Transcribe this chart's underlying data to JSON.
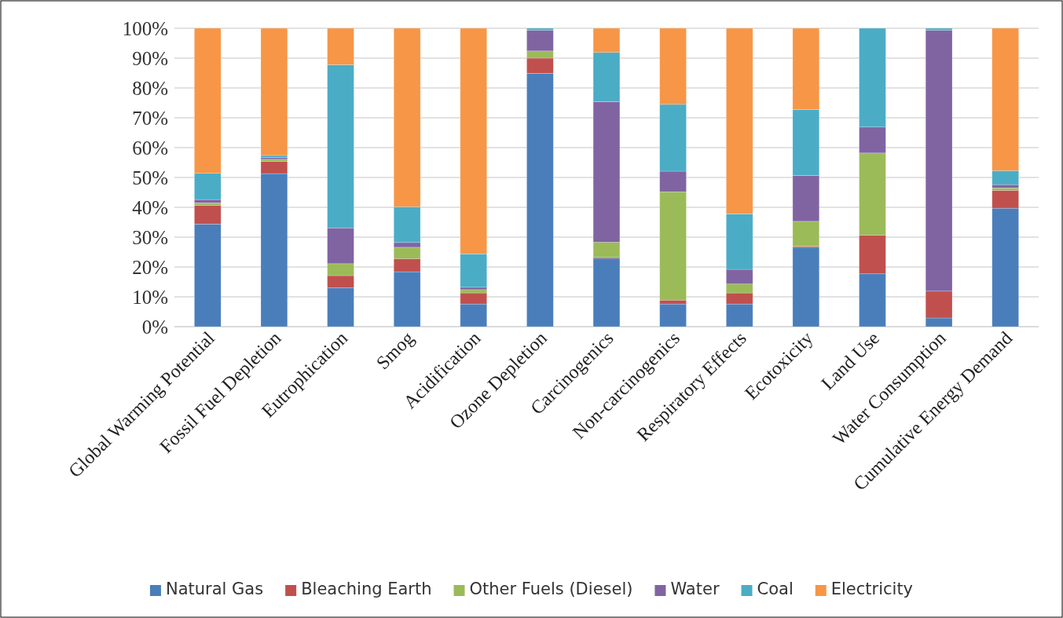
{
  "chart_data": {
    "type": "bar",
    "stacked": true,
    "categories": [
      "Global Warming Potential",
      "Fossil Fuel Depletion",
      "Eutrophication",
      "Smog",
      "Acidification",
      "Ozone Depletion",
      "Carcinogenics",
      "Non-carcinogenics",
      "Respiratory Effects",
      "Ecotoxicity",
      "Land Use",
      "Water Consumption",
      "Cumulative Energy Demand"
    ],
    "series": [
      {
        "name": "Natural Gas",
        "color": "#4a7ebb",
        "values": [
          34.4,
          51.3,
          13.0,
          18.4,
          7.6,
          84.9,
          22.9,
          7.6,
          7.6,
          26.6,
          17.7,
          2.9,
          39.7
        ]
      },
      {
        "name": "Bleaching Earth",
        "color": "#c0504d",
        "values": [
          6.3,
          4.1,
          4.1,
          4.4,
          3.7,
          5.1,
          0.3,
          1.3,
          3.7,
          0.3,
          13.0,
          9.0,
          6.0
        ]
      },
      {
        "name": "Other Fuels (Diesel)",
        "color": "#9bbb59",
        "values": [
          0.8,
          0.7,
          4.0,
          3.8,
          1.1,
          2.4,
          5.1,
          36.3,
          3.0,
          8.4,
          27.5,
          0,
          0.8
        ]
      },
      {
        "name": "Water",
        "color": "#8064a2",
        "values": [
          1.1,
          0.6,
          12.0,
          1.6,
          0.8,
          6.9,
          47.1,
          6.9,
          4.9,
          15.4,
          8.7,
          87.4,
          1.1
        ]
      },
      {
        "name": "Coal",
        "color": "#4bacc6",
        "values": [
          8.8,
          0.7,
          54.7,
          12.0,
          11.2,
          0.7,
          16.5,
          22.4,
          18.6,
          22.1,
          33.1,
          0.7,
          4.7
        ]
      },
      {
        "name": "Electricity",
        "color": "#f79646",
        "values": [
          48.6,
          42.6,
          12.2,
          59.8,
          75.6,
          0,
          8.1,
          25.5,
          62.2,
          27.2,
          0,
          0,
          47.7
        ]
      }
    ],
    "ylim": [
      0,
      100
    ],
    "yticks": [
      {
        "value": 0,
        "label": "0%"
      },
      {
        "value": 10,
        "label": "10%"
      },
      {
        "value": 20,
        "label": "20%"
      },
      {
        "value": 30,
        "label": "30%"
      },
      {
        "value": 40,
        "label": "40%"
      },
      {
        "value": 50,
        "label": "50%"
      },
      {
        "value": 60,
        "label": "60%"
      },
      {
        "value": 70,
        "label": "70%"
      },
      {
        "value": 80,
        "label": "80%"
      },
      {
        "value": 90,
        "label": "90%"
      },
      {
        "value": 100,
        "label": "100%"
      }
    ],
    "grid": "y",
    "legend": "bottom"
  }
}
